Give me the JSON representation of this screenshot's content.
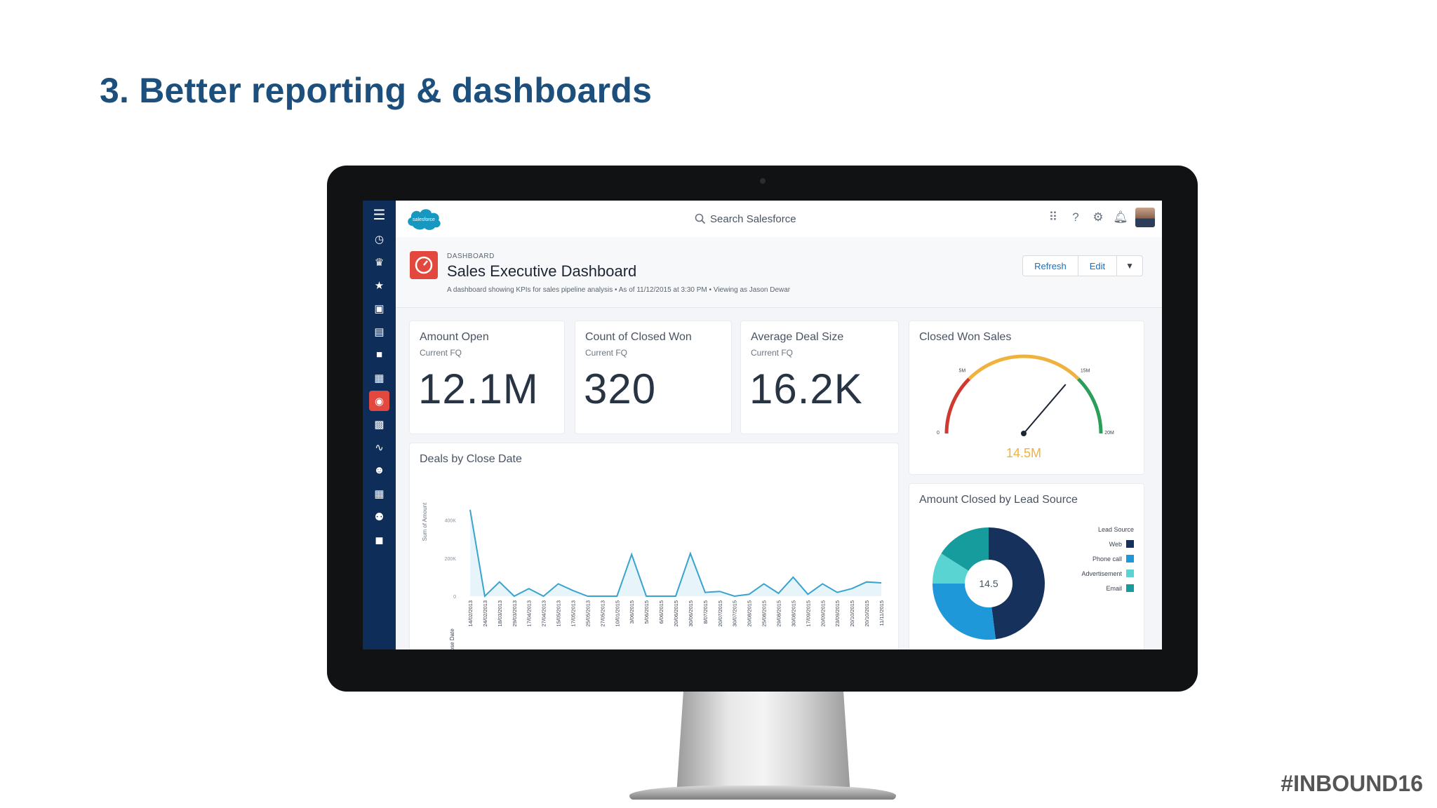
{
  "slide": {
    "title": "3. Better reporting & dashboards",
    "hashtag": "#INBOUND16"
  },
  "app": {
    "logo_text": "salesforce",
    "search_placeholder": "Search Salesforce",
    "top_icons": [
      "app-launcher-icon",
      "help-icon",
      "setup-gear-icon",
      "notifications-bell-icon"
    ],
    "nav_icons": [
      "menu-icon",
      "clock-icon",
      "crown-icon",
      "star-icon",
      "inbox-icon",
      "document-icon",
      "folder-icon",
      "calendar-icon",
      "dashboard-icon",
      "calendar-check-icon",
      "pulse-icon",
      "people-icon",
      "calendar-grid-icon",
      "users-icon",
      "briefcase-icon"
    ],
    "active_nav": "dashboard-icon"
  },
  "header": {
    "eyebrow": "DASHBOARD",
    "title": "Sales Executive Dashboard",
    "description": "A dashboard showing KPIs for sales pipeline analysis  •  As of 11/12/2015 at 3:30 PM  •  Viewing as Jason Dewar",
    "buttons": {
      "refresh": "Refresh",
      "edit": "Edit",
      "more": "▼"
    }
  },
  "metrics": [
    {
      "title": "Amount Open",
      "subtitle": "Current FQ",
      "value": "12.1M"
    },
    {
      "title": "Count of Closed Won",
      "subtitle": "Current FQ",
      "value": "320"
    },
    {
      "title": "Average Deal Size",
      "subtitle": "Current FQ",
      "value": "16.2K"
    }
  ],
  "gauge": {
    "title": "Closed Won Sales",
    "value_label": "14.5M",
    "min_label": "0",
    "max_label": "20M",
    "band1_label": "5M",
    "band2_label": "15M",
    "colors": {
      "low": "#d0392f",
      "mid": "#f0b23e",
      "high": "#2c9e5b"
    }
  },
  "chart_data": [
    {
      "type": "line",
      "title": "Deals by Close Date",
      "xlabel": "Close Date",
      "ylabel": "Sum of Amount",
      "yticks": [
        "0",
        "200K",
        "400K"
      ],
      "ylim": [
        0,
        480000
      ],
      "grid": false,
      "color": "#39a3d0",
      "categories": [
        "14/02/2013",
        "24/02/2013",
        "18/03/2013",
        "29/03/2013",
        "17/04/2013",
        "27/04/2013",
        "15/05/2013",
        "17/05/2013",
        "25/05/2013",
        "27/05/2013",
        "10/01/2015",
        "3/06/2015",
        "5/06/2015",
        "6/06/2015",
        "20/06/2015",
        "30/06/2015",
        "8/07/2015",
        "20/07/2015",
        "30/07/2015",
        "20/08/2015",
        "25/08/2015",
        "29/08/2015",
        "30/08/2015",
        "17/09/2015",
        "20/09/2015",
        "23/09/2015",
        "20/10/2015",
        "20/10/2015",
        "11/11/2015"
      ],
      "values": [
        455000,
        0,
        75000,
        0,
        40000,
        0,
        65000,
        30000,
        0,
        0,
        0,
        220000,
        0,
        0,
        0,
        225000,
        20000,
        25000,
        0,
        10000,
        65000,
        15000,
        100000,
        10000,
        65000,
        20000,
        40000,
        75000,
        70000
      ]
    },
    {
      "type": "pie",
      "title": "Amount Closed by Lead Source",
      "center_label": "14.5",
      "legend_title": "Lead Source",
      "categories": [
        "Web",
        "Phone call",
        "Advertisement",
        "Email"
      ],
      "values": [
        48,
        27,
        9,
        16
      ],
      "colors": [
        "#16325c",
        "#1e98d8",
        "#5ad3d3",
        "#169c9c"
      ]
    }
  ]
}
